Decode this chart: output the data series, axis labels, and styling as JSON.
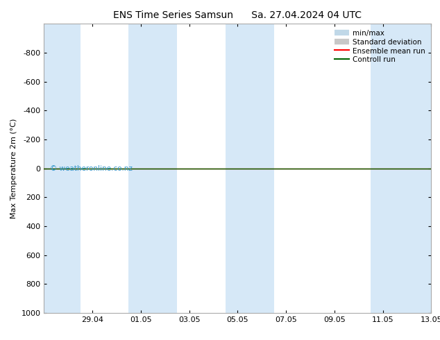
{
  "title": "ENS Time Series Samsun",
  "title2": "Sa. 27.04.2024 04 UTC",
  "ylabel": "Max Temperature 2m (°C)",
  "ylim_top": -1000,
  "ylim_bottom": 1000,
  "yticks": [
    -800,
    -600,
    -400,
    -200,
    0,
    200,
    400,
    600,
    800,
    1000
  ],
  "yticklabels": [
    "-800",
    "-600",
    "-400",
    "-200",
    "0",
    "200",
    "400",
    "600",
    "800",
    "1000"
  ],
  "x_tick_labels": [
    "29.04",
    "01.05",
    "03.05",
    "05.05",
    "07.05",
    "09.05",
    "11.05",
    "13.05"
  ],
  "x_tick_positions": [
    2,
    4,
    6,
    8,
    10,
    12,
    14,
    16
  ],
  "xlim": [
    0,
    16
  ],
  "shaded_bands": [
    [
      0,
      1.5
    ],
    [
      3.5,
      5.5
    ],
    [
      7.5,
      9.5
    ],
    [
      13.5,
      16
    ]
  ],
  "band_color": "#d6e8f7",
  "green_line_color": "#006400",
  "red_line_color": "#ff0000",
  "bg_color": "#ffffff",
  "legend_labels": [
    "min/max",
    "Standard deviation",
    "Ensemble mean run",
    "Controll run"
  ],
  "copyright_text": "© weatheronline.co.nz",
  "copyright_color": "#3399cc",
  "title_fontsize": 10,
  "axis_fontsize": 8,
  "tick_fontsize": 8,
  "legend_fontsize": 7.5
}
